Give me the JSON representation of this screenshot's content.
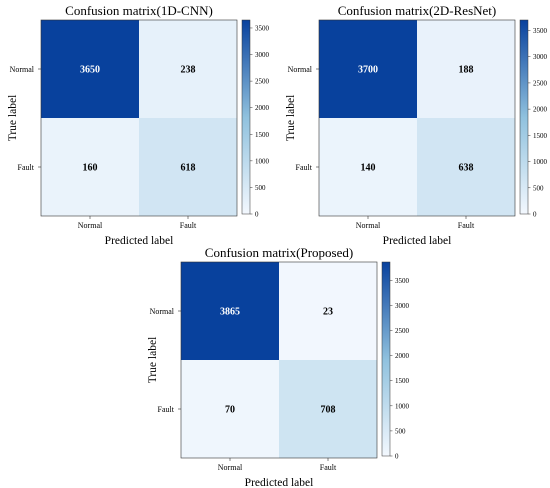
{
  "chart_data": [
    {
      "type": "heatmap",
      "title": "Confusion matrix(1D-CNN)",
      "xlabel": "Predicted label",
      "ylabel": "True label",
      "x_categories": [
        "Normal",
        "Fault"
      ],
      "y_categories": [
        "Normal",
        "Fault"
      ],
      "values": [
        [
          3650,
          238
        ],
        [
          160,
          618
        ]
      ],
      "colorbar": {
        "min": 0,
        "max": 3650,
        "ticks": [
          0,
          500,
          1000,
          1500,
          2000,
          2500,
          3000,
          3500
        ]
      }
    },
    {
      "type": "heatmap",
      "title": "Confusion matrix(2D-ResNet)",
      "xlabel": "Predicted label",
      "ylabel": "True label",
      "x_categories": [
        "Normal",
        "Fault"
      ],
      "y_categories": [
        "Normal",
        "Fault"
      ],
      "values": [
        [
          3700,
          188
        ],
        [
          140,
          638
        ]
      ],
      "colorbar": {
        "min": 0,
        "max": 3700,
        "ticks": [
          0,
          500,
          1000,
          1500,
          2000,
          2500,
          3000,
          3500
        ]
      }
    },
    {
      "type": "heatmap",
      "title": "Confusion matrix(Proposed)",
      "xlabel": "Predicted label",
      "ylabel": "True label",
      "x_categories": [
        "Normal",
        "Fault"
      ],
      "y_categories": [
        "Normal",
        "Fault"
      ],
      "values": [
        [
          3865,
          23
        ],
        [
          70,
          708
        ]
      ],
      "colorbar": {
        "min": 0,
        "max": 3865,
        "ticks": [
          0,
          500,
          1000,
          1500,
          2000,
          2500,
          3000,
          3500
        ]
      }
    }
  ],
  "colors": {
    "low": "#f3f8fe",
    "mid": "#8fc1de",
    "high": "#08419d",
    "text_dark": "#000000",
    "text_light": "#ffffff"
  }
}
